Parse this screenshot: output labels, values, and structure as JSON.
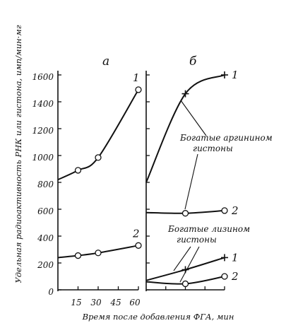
{
  "chart_data": {
    "ylabel": "Удельная радиоактивность РНК или гистона, имп/мин·мг",
    "xlabel": "Время после добавления ФГА, мин",
    "y_ticks": [
      "1600",
      "1400",
      "1200",
      "1000",
      "800",
      "600",
      "400",
      "200",
      "0"
    ],
    "ylim": [
      0,
      1600
    ],
    "panels": [
      {
        "label": "а",
        "type": "line",
        "x_ticks": [
          "15",
          "30",
          "45",
          "60"
        ],
        "xlim": [
          0,
          60
        ],
        "series": [
          {
            "name": "1",
            "marker": "circle",
            "x": [
              0,
              15,
              30,
              60
            ],
            "y": [
              820,
              890,
              985,
              1490
            ]
          },
          {
            "name": "2",
            "marker": "circle",
            "x": [
              0,
              15,
              30,
              60
            ],
            "y": [
              240,
              255,
              275,
              330
            ]
          }
        ]
      },
      {
        "label": "б",
        "type": "line",
        "x_ticks": [],
        "xlim": [
          0,
          60
        ],
        "annotations": [
          "Богатые аргинином гистоны",
          "Богатые лизином гистоны"
        ],
        "series": [
          {
            "name": "1",
            "marker": "plus",
            "x": [
              0,
              30,
              60
            ],
            "y": [
              800,
              1460,
              1600
            ],
            "group": "arginine"
          },
          {
            "name": "2",
            "marker": "circle",
            "x": [
              0,
              30,
              60
            ],
            "y": [
              575,
              570,
              590
            ],
            "group": "arginine"
          },
          {
            "name": "1",
            "marker": "plus",
            "x": [
              0,
              30,
              60
            ],
            "y": [
              70,
              150,
              240
            ],
            "group": "lysine"
          },
          {
            "name": "2",
            "marker": "circle",
            "x": [
              0,
              30,
              60
            ],
            "y": [
              60,
              45,
              100
            ],
            "group": "lysine"
          }
        ]
      }
    ]
  }
}
